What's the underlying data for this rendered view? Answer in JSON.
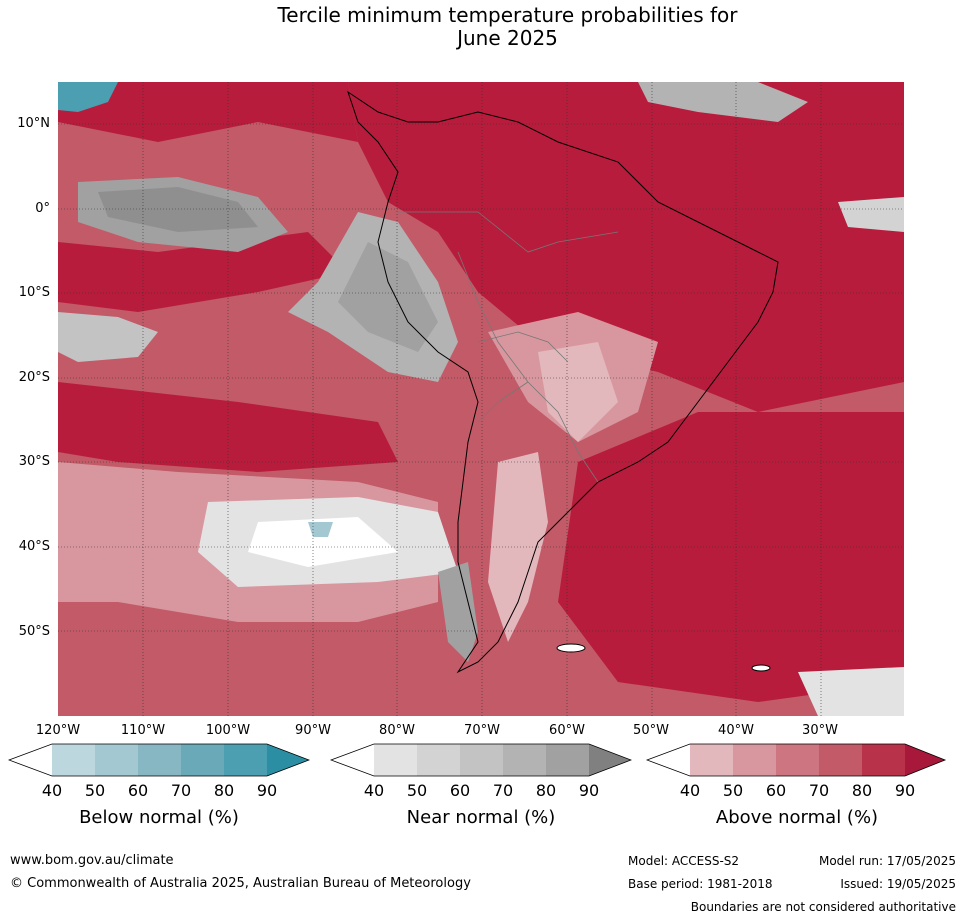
{
  "title_line1": "Tercile minimum temperature probabilities for",
  "title_line2": "June 2025",
  "latitude_labels": [
    "10°N",
    "0°",
    "10°S",
    "20°S",
    "30°S",
    "40°S",
    "50°S"
  ],
  "longitude_labels": [
    "120°W",
    "110°W",
    "100°W",
    "90°W",
    "80°W",
    "70°W",
    "60°W",
    "50°W",
    "40°W",
    "30°W"
  ],
  "legends": [
    {
      "title": "Below normal (%)",
      "ticks": [
        "40",
        "50",
        "60",
        "70",
        "80",
        "90"
      ],
      "colors": [
        "#ffffff",
        "#bcd7de",
        "#a3c8d1",
        "#88b7c4",
        "#6aa9b8",
        "#4c9fb0",
        "#2b8ea3"
      ]
    },
    {
      "title": "Near normal (%)",
      "ticks": [
        "40",
        "50",
        "60",
        "70",
        "80",
        "90"
      ],
      "colors": [
        "#ffffff",
        "#e3e3e3",
        "#d3d3d3",
        "#c3c3c3",
        "#b3b3b3",
        "#a1a1a1",
        "#808080"
      ]
    },
    {
      "title": "Above normal (%)",
      "ticks": [
        "40",
        "50",
        "60",
        "70",
        "80",
        "90"
      ],
      "colors": [
        "#ffffff",
        "#e3b8bd",
        "#d8979f",
        "#cd7681",
        "#c25a68",
        "#b8324a",
        "#a8183a"
      ]
    }
  ],
  "footer": {
    "website": "www.bom.gov.au/climate",
    "copyright": "© Commonwealth of Australia 2025, Australian Bureau of Meteorology",
    "model": "Model: ACCESS-S2",
    "base_period": "Base period: 1981-2018",
    "model_run": "Model run: 17/05/2025",
    "issued": "Issued: 19/05/2025",
    "disclaimer": "Boundaries are not considered authoritative"
  }
}
